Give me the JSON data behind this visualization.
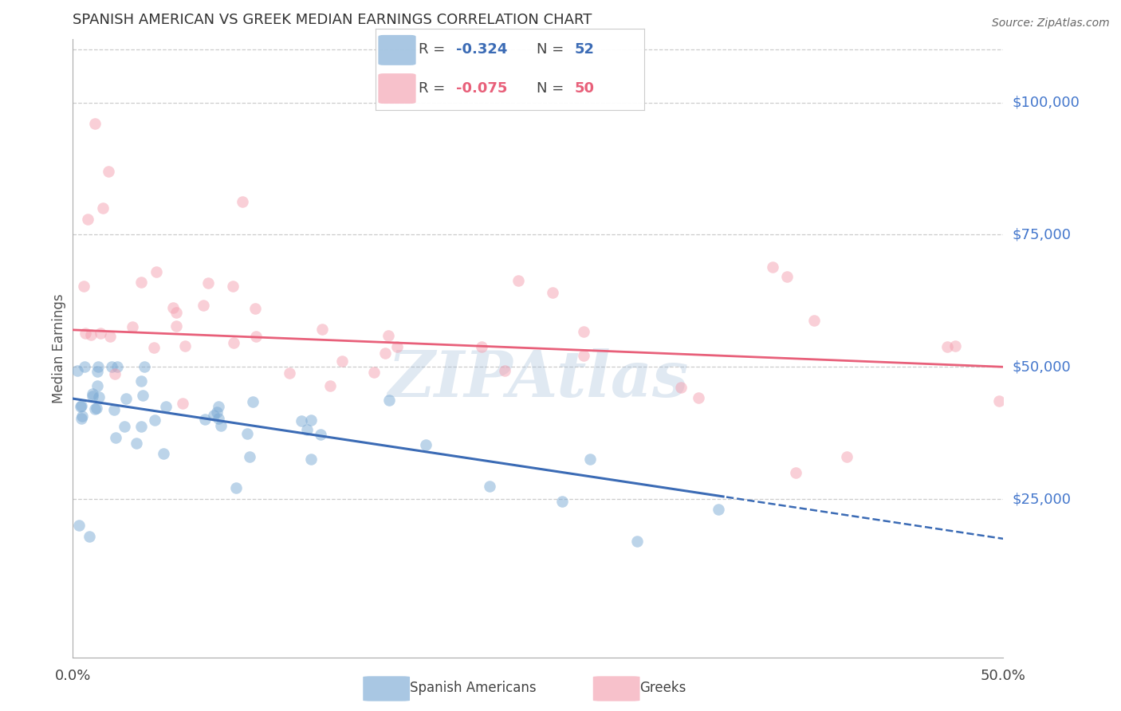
{
  "title": "SPANISH AMERICAN VS GREEK MEDIAN EARNINGS CORRELATION CHART",
  "source": "Source: ZipAtlas.com",
  "ylabel": "Median Earnings",
  "ytick_labels": [
    "$25,000",
    "$50,000",
    "$75,000",
    "$100,000"
  ],
  "ytick_values": [
    25000,
    50000,
    75000,
    100000
  ],
  "ymin": -5000,
  "ymax": 112000,
  "xmin": 0.0,
  "xmax": 50.0,
  "blue_color": "#7BAAD4",
  "pink_color": "#F4A0B0",
  "blue_line_color": "#3B6BB5",
  "pink_line_color": "#E8607A",
  "watermark": "ZIPAtlas",
  "watermark_color": "#9BB8D4",
  "title_color": "#333333",
  "ytick_color": "#4477CC",
  "legend_r1": "-0.324",
  "legend_n1": "52",
  "legend_r2": "-0.075",
  "legend_n2": "50",
  "blue_solid_end_x": 35.0,
  "blue_line_intercept": 44000,
  "blue_line_slope": -530,
  "pink_line_intercept": 57000,
  "pink_line_slope": -140
}
